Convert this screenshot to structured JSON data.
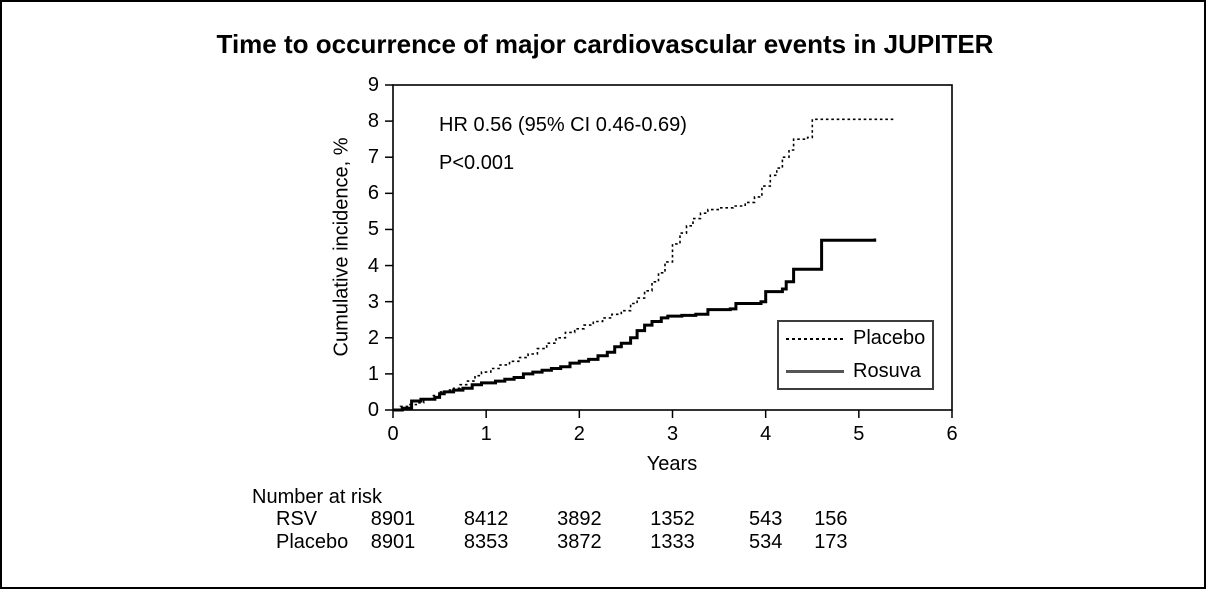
{
  "chart_data": {
    "type": "line",
    "subtype": "kaplan-meier-step",
    "title": "Time to occurrence of major cardiovascular events in JUPITER",
    "xlabel": "Years",
    "ylabel": "Cumulative incidence, %",
    "xlim": [
      0,
      6
    ],
    "ylim": [
      0,
      9
    ],
    "x_ticks": [
      0,
      1,
      2,
      3,
      4,
      5,
      6
    ],
    "y_ticks": [
      0,
      1,
      2,
      3,
      4,
      5,
      6,
      7,
      8,
      9
    ],
    "grid": false,
    "legend_position": "inside-right",
    "annotations": [
      "HR 0.56 (95% CI 0.46-0.69)",
      "P<0.001"
    ],
    "series": [
      {
        "name": "Placebo",
        "style": "dashed",
        "color": "#000000",
        "points": [
          [
            0,
            0
          ],
          [
            0.08,
            0.1
          ],
          [
            0.17,
            0.15
          ],
          [
            0.25,
            0.2
          ],
          [
            0.33,
            0.3
          ],
          [
            0.42,
            0.4
          ],
          [
            0.5,
            0.5
          ],
          [
            0.58,
            0.55
          ],
          [
            0.65,
            0.6
          ],
          [
            0.72,
            0.7
          ],
          [
            0.8,
            0.8
          ],
          [
            0.88,
            0.95
          ],
          [
            0.95,
            1.05
          ],
          [
            1.05,
            1.15
          ],
          [
            1.15,
            1.25
          ],
          [
            1.25,
            1.35
          ],
          [
            1.35,
            1.45
          ],
          [
            1.45,
            1.55
          ],
          [
            1.55,
            1.7
          ],
          [
            1.65,
            1.85
          ],
          [
            1.75,
            2.0
          ],
          [
            1.85,
            2.15
          ],
          [
            1.95,
            2.25
          ],
          [
            2.05,
            2.35
          ],
          [
            2.15,
            2.45
          ],
          [
            2.25,
            2.55
          ],
          [
            2.35,
            2.65
          ],
          [
            2.45,
            2.75
          ],
          [
            2.55,
            2.95
          ],
          [
            2.62,
            3.1
          ],
          [
            2.7,
            3.3
          ],
          [
            2.78,
            3.55
          ],
          [
            2.85,
            3.8
          ],
          [
            2.92,
            4.1
          ],
          [
            3.0,
            4.6
          ],
          [
            3.08,
            4.9
          ],
          [
            3.15,
            5.1
          ],
          [
            3.22,
            5.3
          ],
          [
            3.3,
            5.45
          ],
          [
            3.38,
            5.55
          ],
          [
            3.5,
            5.6
          ],
          [
            3.65,
            5.65
          ],
          [
            3.78,
            5.75
          ],
          [
            3.88,
            5.9
          ],
          [
            3.96,
            6.2
          ],
          [
            4.05,
            6.5
          ],
          [
            4.12,
            6.7
          ],
          [
            4.18,
            7.0
          ],
          [
            4.25,
            7.2
          ],
          [
            4.3,
            7.5
          ],
          [
            4.45,
            7.55
          ],
          [
            4.5,
            8.05
          ],
          [
            5.38,
            8.05
          ]
        ]
      },
      {
        "name": "Rosuva",
        "style": "solid",
        "color": "#000000",
        "points": [
          [
            0,
            0
          ],
          [
            0.1,
            0.05
          ],
          [
            0.2,
            0.25
          ],
          [
            0.3,
            0.3
          ],
          [
            0.45,
            0.35
          ],
          [
            0.5,
            0.45
          ],
          [
            0.55,
            0.5
          ],
          [
            0.65,
            0.55
          ],
          [
            0.75,
            0.6
          ],
          [
            0.85,
            0.7
          ],
          [
            0.95,
            0.75
          ],
          [
            1.1,
            0.8
          ],
          [
            1.2,
            0.85
          ],
          [
            1.3,
            0.9
          ],
          [
            1.4,
            1.0
          ],
          [
            1.5,
            1.05
          ],
          [
            1.6,
            1.1
          ],
          [
            1.7,
            1.15
          ],
          [
            1.8,
            1.2
          ],
          [
            1.9,
            1.3
          ],
          [
            2.0,
            1.35
          ],
          [
            2.1,
            1.4
          ],
          [
            2.2,
            1.5
          ],
          [
            2.3,
            1.6
          ],
          [
            2.38,
            1.75
          ],
          [
            2.45,
            1.85
          ],
          [
            2.55,
            2.0
          ],
          [
            2.62,
            2.2
          ],
          [
            2.7,
            2.35
          ],
          [
            2.78,
            2.45
          ],
          [
            2.88,
            2.55
          ],
          [
            2.95,
            2.6
          ],
          [
            3.1,
            2.62
          ],
          [
            3.25,
            2.65
          ],
          [
            3.38,
            2.78
          ],
          [
            3.62,
            2.8
          ],
          [
            3.68,
            2.95
          ],
          [
            3.95,
            3.0
          ],
          [
            4.0,
            3.28
          ],
          [
            4.18,
            3.35
          ],
          [
            4.22,
            3.55
          ],
          [
            4.3,
            3.9
          ],
          [
            4.58,
            3.9
          ],
          [
            4.6,
            4.7
          ],
          [
            5.17,
            4.75
          ]
        ]
      }
    ],
    "number_at_risk": {
      "label": "Number at risk",
      "column_years": [
        0,
        1,
        2,
        3,
        4,
        4.7
      ],
      "rows": [
        {
          "label": "RSV",
          "values": [
            "8901",
            "8412",
            "3892",
            "1352",
            "543",
            "156"
          ]
        },
        {
          "label": "Placebo",
          "values": [
            "8901",
            "8353",
            "3872",
            "1333",
            "534",
            "173"
          ]
        }
      ]
    }
  },
  "colors": {
    "foreground": "#000000",
    "background": "#ffffff",
    "legend_border": "#3c3c3c"
  }
}
